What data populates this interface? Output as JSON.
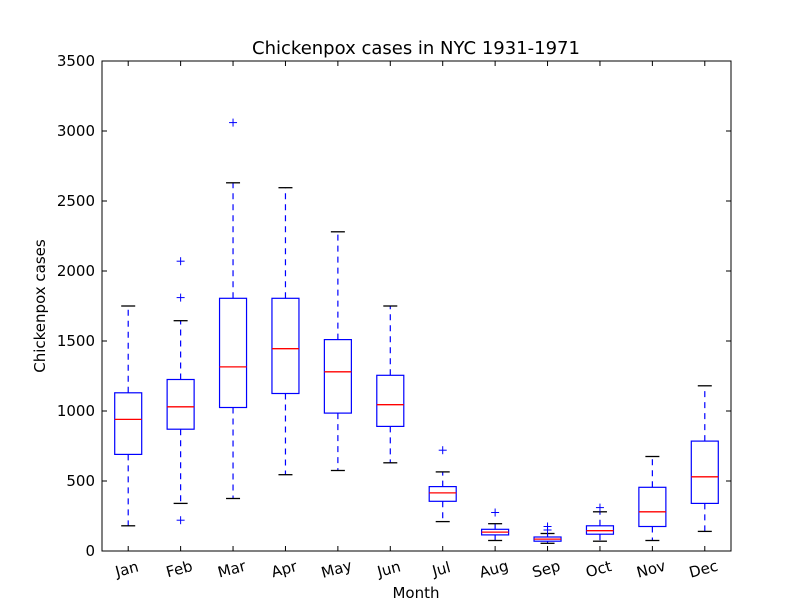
{
  "chart_data": {
    "type": "box",
    "title": "Chickenpox cases in NYC 1931-1971",
    "xlabel": "Month",
    "ylabel": "Chickenpox cases",
    "ylim": [
      0,
      3500
    ],
    "yticks": [
      0,
      500,
      1000,
      1500,
      2000,
      2500,
      3000,
      3500
    ],
    "grid": false,
    "colors": {
      "box": "#0000ff",
      "median": "#ff0000",
      "cap": "#000000",
      "flier": "#0000ff"
    },
    "categories": [
      "Jan",
      "Feb",
      "Mar",
      "Apr",
      "May",
      "Jun",
      "Jul",
      "Aug",
      "Sep",
      "Oct",
      "Nov",
      "Dec"
    ],
    "boxes": [
      {
        "label": "Jan",
        "whisker_low": 180,
        "q1": 690,
        "median": 940,
        "q3": 1130,
        "whisker_high": 1750,
        "fliers": []
      },
      {
        "label": "Feb",
        "whisker_low": 340,
        "q1": 870,
        "median": 1030,
        "q3": 1225,
        "whisker_high": 1645,
        "fliers": [
          2070,
          1810,
          220
        ]
      },
      {
        "label": "Mar",
        "whisker_low": 375,
        "q1": 1025,
        "median": 1315,
        "q3": 1805,
        "whisker_high": 2630,
        "fliers": [
          3060
        ]
      },
      {
        "label": "Apr",
        "whisker_low": 545,
        "q1": 1125,
        "median": 1445,
        "q3": 1805,
        "whisker_high": 2595,
        "fliers": []
      },
      {
        "label": "May",
        "whisker_low": 575,
        "q1": 985,
        "median": 1280,
        "q3": 1510,
        "whisker_high": 2280,
        "fliers": []
      },
      {
        "label": "Jun",
        "whisker_low": 630,
        "q1": 890,
        "median": 1045,
        "q3": 1255,
        "whisker_high": 1750,
        "fliers": []
      },
      {
        "label": "Jul",
        "whisker_low": 210,
        "q1": 355,
        "median": 415,
        "q3": 460,
        "whisker_high": 565,
        "fliers": [
          720
        ]
      },
      {
        "label": "Aug",
        "whisker_low": 75,
        "q1": 115,
        "median": 135,
        "q3": 155,
        "whisker_high": 195,
        "fliers": [
          275
        ]
      },
      {
        "label": "Sep",
        "whisker_low": 55,
        "q1": 70,
        "median": 85,
        "q3": 100,
        "whisker_high": 125,
        "fliers": [
          175,
          150
        ]
      },
      {
        "label": "Oct",
        "whisker_low": 70,
        "q1": 120,
        "median": 145,
        "q3": 180,
        "whisker_high": 280,
        "fliers": [
          310
        ]
      },
      {
        "label": "Nov",
        "whisker_low": 75,
        "q1": 175,
        "median": 280,
        "q3": 455,
        "whisker_high": 675,
        "fliers": []
      },
      {
        "label": "Dec",
        "whisker_low": 140,
        "q1": 340,
        "median": 530,
        "q3": 785,
        "whisker_high": 1180,
        "fliers": []
      }
    ]
  }
}
